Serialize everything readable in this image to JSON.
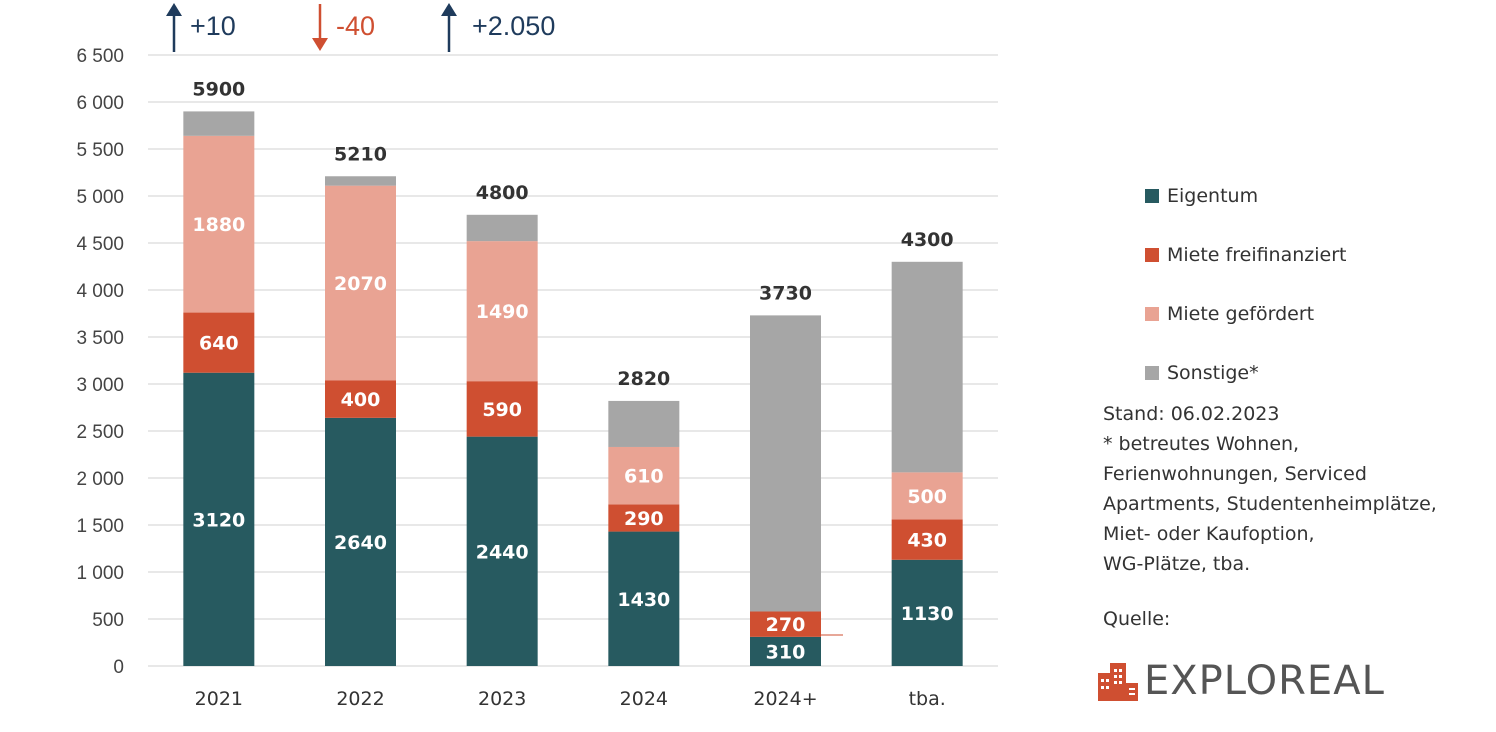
{
  "chart_data": {
    "type": "bar",
    "stacked": true,
    "categories": [
      "2021",
      "2022",
      "2023",
      "2024",
      "2024+",
      "tba."
    ],
    "series": [
      {
        "name": "Eigentum",
        "color": "#275a60",
        "values": [
          3120,
          2640,
          2440,
          1430,
          310,
          1130
        ]
      },
      {
        "name": "Miete freifinanziert",
        "color": "#cf4f31",
        "values": [
          640,
          400,
          590,
          290,
          270,
          430
        ]
      },
      {
        "name": "Miete gefördert",
        "color": "#e9a393",
        "values": [
          1880,
          2070,
          1490,
          610,
          0,
          500
        ]
      },
      {
        "name": "Sonstige*",
        "color": "#a6a6a6",
        "values": [
          260,
          100,
          280,
          490,
          3150,
          2240
        ]
      }
    ],
    "totals": [
      5900,
      5210,
      4800,
      2820,
      3730,
      4300
    ],
    "segment_labels": [
      [
        "3120",
        "640",
        "1880",
        ""
      ],
      [
        "2640",
        "400",
        "2070",
        ""
      ],
      [
        "2440",
        "590",
        "1490",
        ""
      ],
      [
        "1430",
        "290",
        "610",
        ""
      ],
      [
        "310",
        "270",
        "",
        ""
      ],
      [
        "1130",
        "430",
        "500",
        ""
      ]
    ],
    "ylim": [
      0,
      6500
    ],
    "yticks": [
      0,
      500,
      1000,
      1500,
      2000,
      2500,
      3000,
      3500,
      4000,
      4500,
      5000,
      5500,
      6000,
      6500
    ],
    "ytick_labels": [
      "0",
      "500",
      "1 000",
      "1 500",
      "2 000",
      "2 500",
      "3 000",
      "3 500",
      "4 000",
      "4 500",
      "5 000",
      "5 500",
      "6 000",
      "6 500"
    ],
    "grid": true,
    "legend_position": "right",
    "annotations": [
      {
        "text": "+10",
        "direction": "up",
        "color": "#1f3b5c"
      },
      {
        "text": "-40",
        "direction": "down",
        "color": "#cf4f31"
      },
      {
        "text": "+2.050",
        "direction": "up",
        "color": "#1f3b5c"
      }
    ]
  },
  "legend": {
    "items": [
      {
        "label": "Eigentum",
        "color": "#275a60"
      },
      {
        "label": "Miete freifinanziert",
        "color": "#cf4f31"
      },
      {
        "label": "Miete gefördert",
        "color": "#e9a393"
      },
      {
        "label": "Sonstige*",
        "color": "#a6a6a6"
      }
    ]
  },
  "note": {
    "lines": [
      "Stand: 06.02.2023",
      "* betreutes Wohnen,",
      "Ferienwohnungen, Serviced",
      "Apartments, Studentenheimplätze,",
      "Miet- oder Kaufoption,",
      "WG-Plätze, tba."
    ]
  },
  "source": {
    "label": "Quelle:",
    "logo_text": "EXPLOREAL",
    "logo_color": "#cf4f31"
  }
}
